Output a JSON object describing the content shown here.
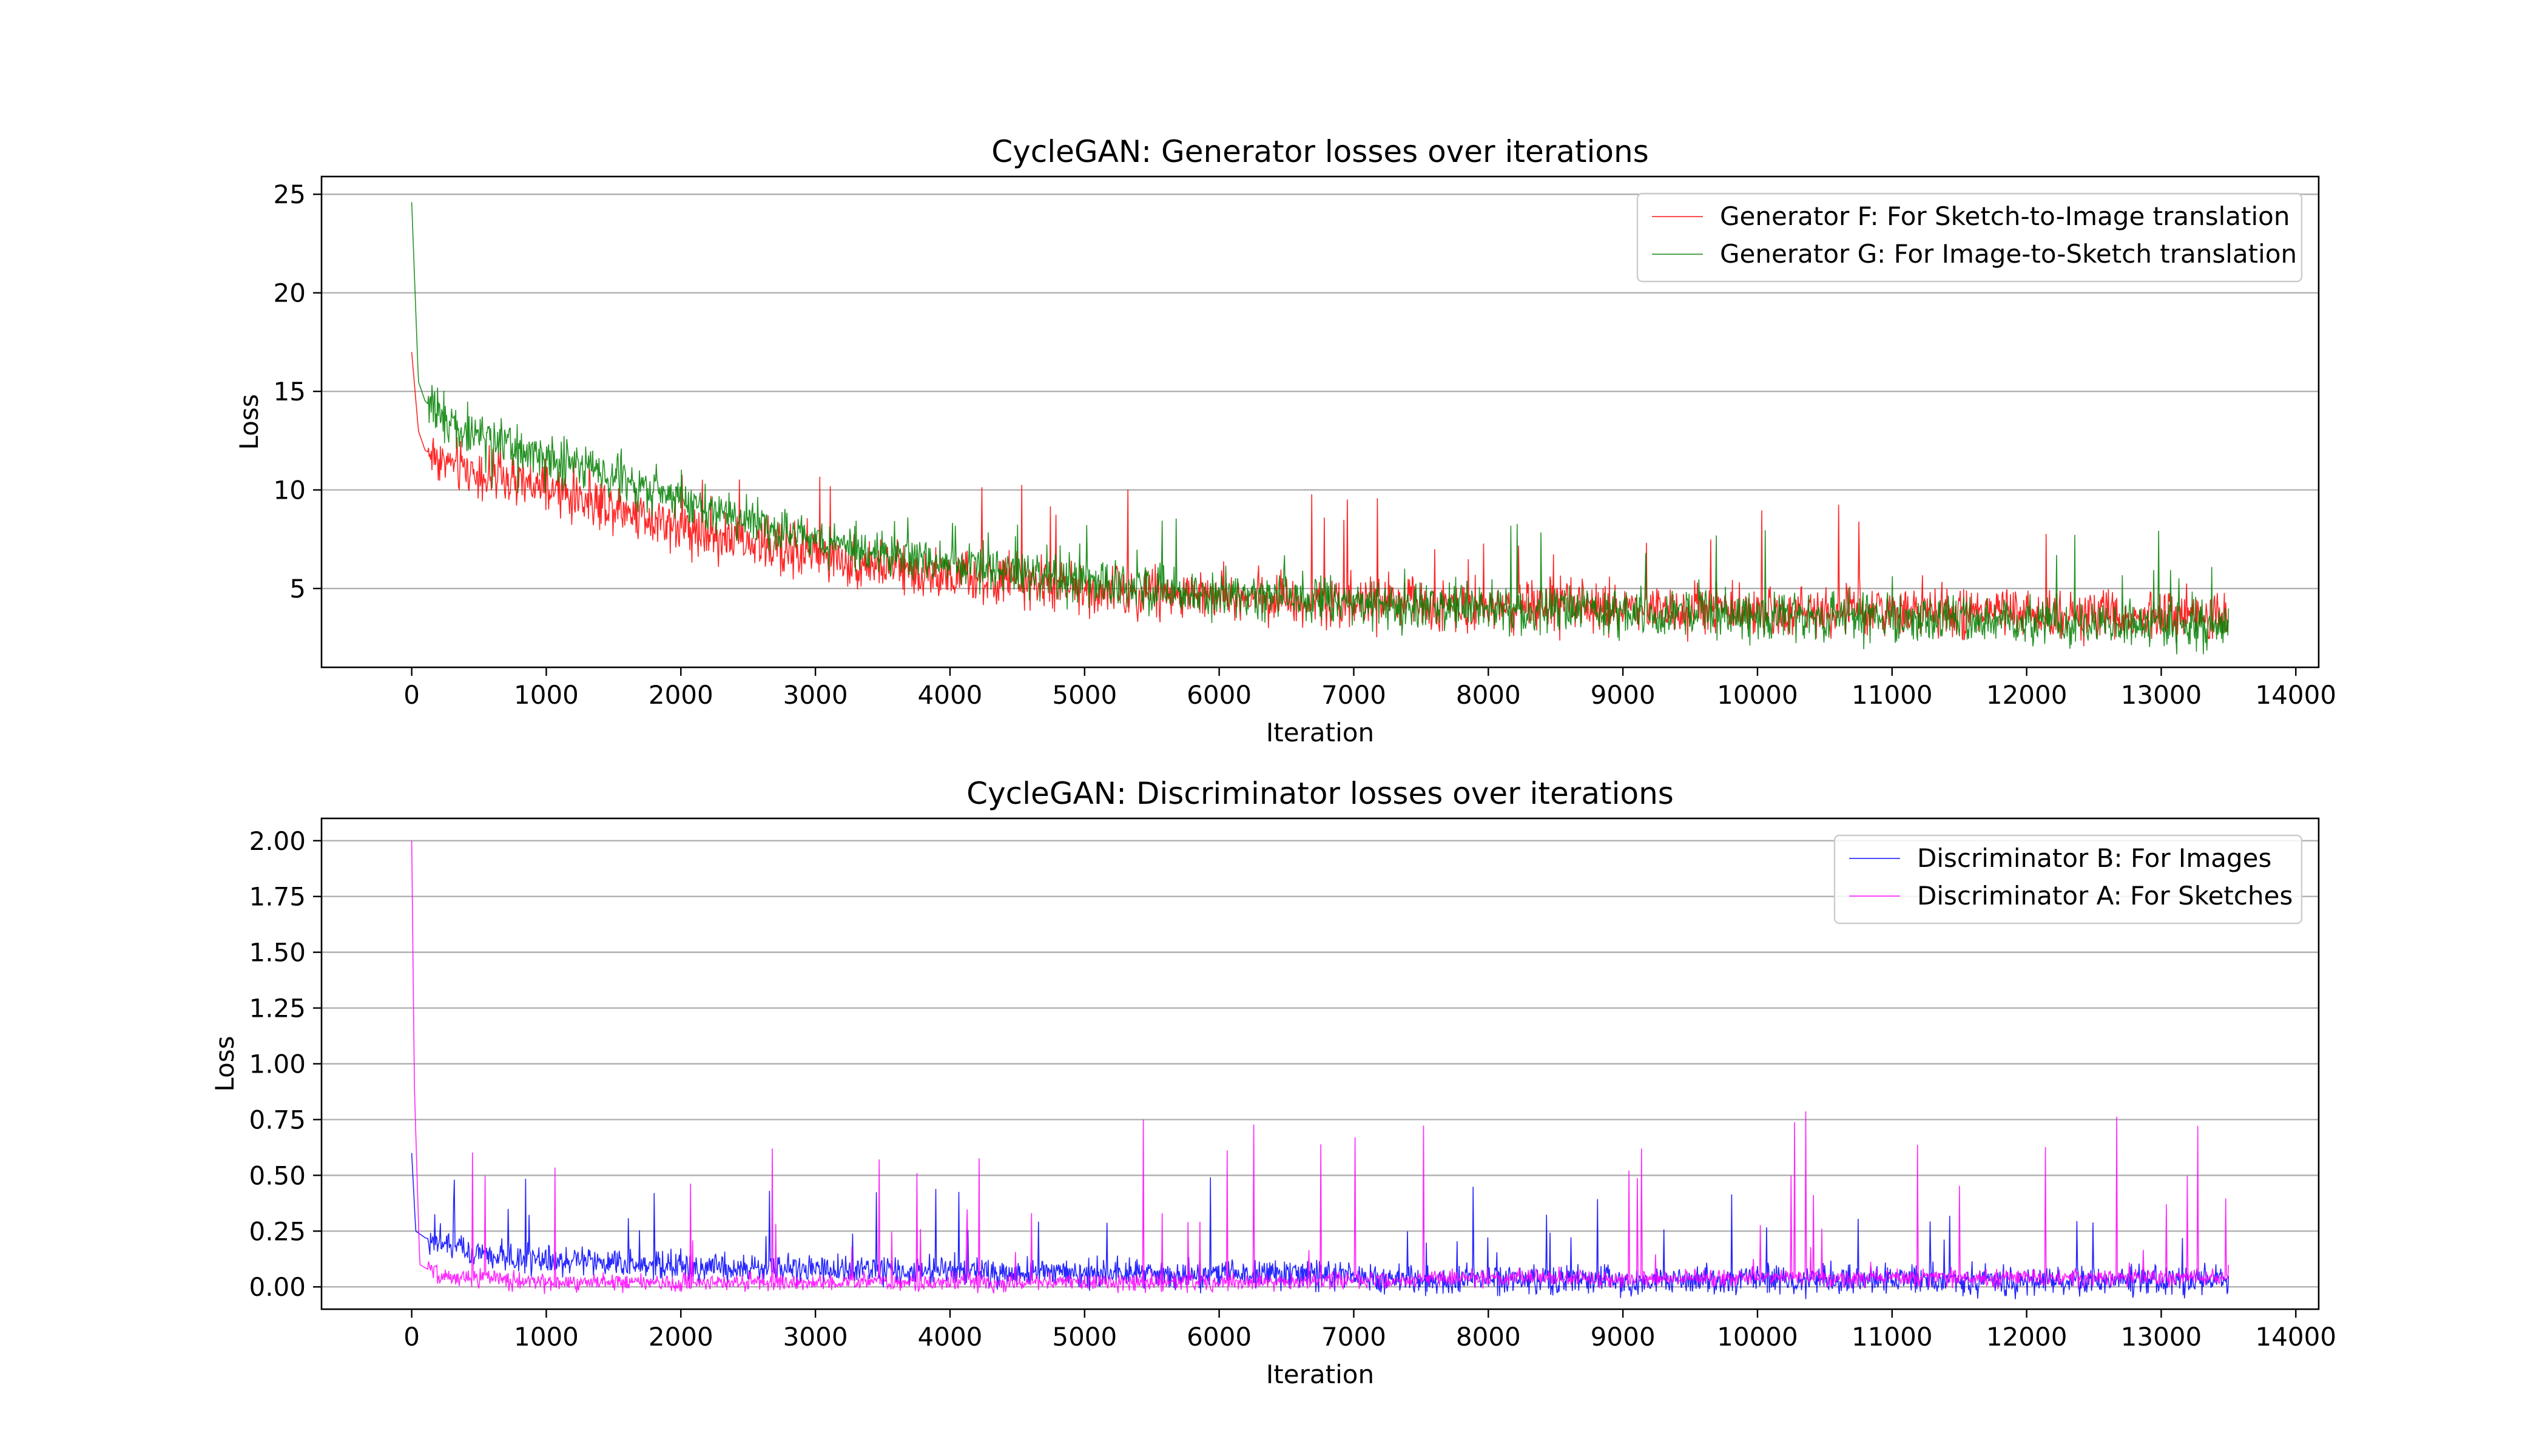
{
  "chart_data": [
    {
      "type": "line",
      "title": "CycleGAN: Generator losses over iterations",
      "xlabel": "Iteration",
      "ylabel": "Loss",
      "xlim": [
        -670,
        14170
      ],
      "ylim": [
        1.0,
        25.9
      ],
      "xticks": [
        0,
        1000,
        2000,
        3000,
        4000,
        5000,
        6000,
        7000,
        8000,
        9000,
        10000,
        11000,
        12000,
        13000,
        14000
      ],
      "xtick_labels": [
        "0",
        "1000",
        "2000",
        "3000",
        "4000",
        "5000",
        "6000",
        "7000",
        "8000",
        "9000",
        "10000",
        "11000",
        "12000",
        "13000",
        "14000"
      ],
      "yticks": [
        5,
        10,
        15,
        20,
        25
      ],
      "ytick_labels": [
        "5",
        "10",
        "15",
        "20",
        "25"
      ],
      "grid": "horizontal",
      "legend_position": "top-right",
      "series": [
        {
          "name": "Generator F: For Sketch-to-Image translation",
          "color": "#ff0000",
          "x": [
            0,
            50,
            100,
            300,
            500,
            1000,
            1500,
            2000,
            2500,
            3000,
            3500,
            4000,
            5000,
            6000,
            7000,
            8000,
            9000,
            10000,
            11000,
            12000,
            13000,
            13500
          ],
          "values": [
            17.0,
            13.0,
            12.0,
            11.3,
            10.8,
            10.0,
            9.2,
            8.2,
            7.3,
            6.7,
            6.1,
            5.6,
            5.0,
            4.6,
            4.3,
            4.1,
            4.0,
            3.9,
            3.8,
            3.7,
            3.6,
            3.6
          ],
          "noise": 1.0,
          "spike_max": 11.2
        },
        {
          "name": "Generator G: For Image-to-Sketch translation",
          "color": "#008000",
          "x": [
            0,
            50,
            100,
            300,
            500,
            1000,
            1500,
            2000,
            2500,
            3000,
            3500,
            4000,
            5000,
            6000,
            7000,
            8000,
            9000,
            10000,
            11000,
            12000,
            13000,
            13500
          ],
          "values": [
            24.6,
            15.5,
            14.5,
            13.3,
            12.8,
            11.8,
            10.8,
            9.5,
            8.3,
            7.6,
            6.8,
            6.2,
            5.4,
            4.7,
            4.3,
            4.0,
            3.8,
            3.6,
            3.5,
            3.3,
            3.2,
            3.1
          ],
          "noise": 0.9,
          "spike_max": 9.0
        }
      ]
    },
    {
      "type": "line",
      "title": "CycleGAN: Discriminator losses over iterations",
      "xlabel": "Iteration",
      "ylabel": "Loss",
      "xlim": [
        -670,
        14170
      ],
      "ylim": [
        -0.1,
        2.1
      ],
      "xticks": [
        0,
        1000,
        2000,
        3000,
        4000,
        5000,
        6000,
        7000,
        8000,
        9000,
        10000,
        11000,
        12000,
        13000,
        14000
      ],
      "xtick_labels": [
        "0",
        "1000",
        "2000",
        "3000",
        "4000",
        "5000",
        "6000",
        "7000",
        "8000",
        "9000",
        "10000",
        "11000",
        "12000",
        "13000",
        "14000"
      ],
      "yticks": [
        0.0,
        0.25,
        0.5,
        0.75,
        1.0,
        1.25,
        1.5,
        1.75,
        2.0
      ],
      "ytick_labels": [
        "0.00",
        "0.25",
        "0.50",
        "0.75",
        "1.00",
        "1.25",
        "1.50",
        "1.75",
        "2.00"
      ],
      "grid": "horizontal",
      "legend_position": "top-right",
      "series": [
        {
          "name": "Discriminator B: For Images",
          "color": "#0000ff",
          "x": [
            0,
            30,
            100,
            500,
            1000,
            2000,
            3000,
            4000,
            5000,
            6000,
            7000,
            8000,
            9000,
            10000,
            11000,
            12000,
            13000,
            13500
          ],
          "values": [
            0.6,
            0.25,
            0.22,
            0.15,
            0.12,
            0.09,
            0.08,
            0.07,
            0.065,
            0.06,
            0.045,
            0.035,
            0.03,
            0.03,
            0.03,
            0.03,
            0.03,
            0.03
          ],
          "noise": 0.05,
          "spike_max": 0.55
        },
        {
          "name": "Discriminator A: For Sketches",
          "color": "#ff00ff",
          "x": [
            0,
            20,
            60,
            200,
            1000,
            2000,
            3000,
            4000,
            5000,
            6000,
            7000,
            8000,
            9000,
            10000,
            11000,
            12000,
            13000,
            13500
          ],
          "values": [
            2.0,
            0.9,
            0.1,
            0.05,
            0.02,
            0.02,
            0.02,
            0.02,
            0.02,
            0.02,
            0.03,
            0.04,
            0.04,
            0.04,
            0.04,
            0.04,
            0.04,
            0.04
          ],
          "noise": 0.03,
          "spike_max": 0.88
        }
      ]
    }
  ]
}
